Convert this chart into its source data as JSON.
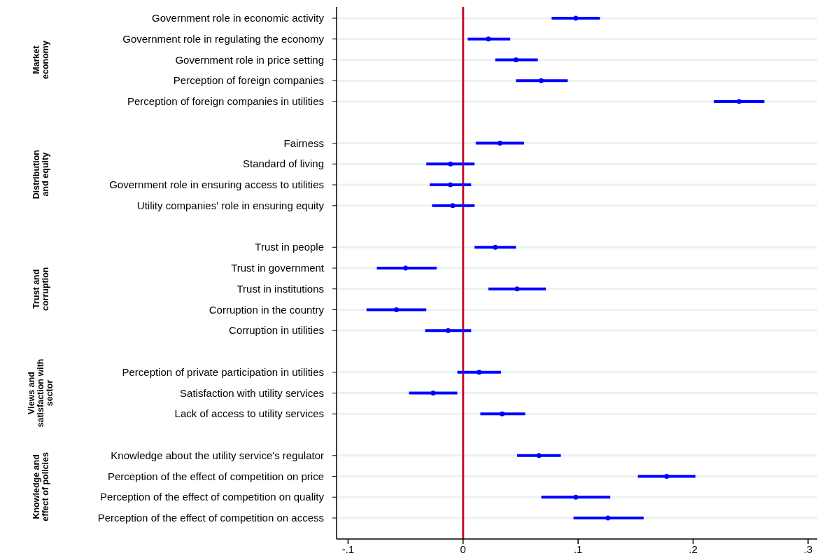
{
  "chart_data": {
    "type": "scatter",
    "orientation": "horizontal",
    "categories": [
      "Government role in economic activity",
      "Government role in regulating the economy",
      "Government role in price setting",
      "Perception of foreign companies",
      "Perception of foreign companies in utilities",
      null,
      "Fairness",
      "Standard of living",
      "Government role in ensuring access to utilities",
      "Utility companies' role in ensuring equity",
      null,
      "Trust in people",
      "Trust in government",
      "Trust in institutions",
      "Corruption in the country",
      "Corruption in utilities",
      null,
      "Perception of private participation in utilities",
      "Satisfaction with utility services",
      "Lack of access to utility services",
      null,
      "Knowledge about the utility service's regulator",
      "Perception of the effect of competition on price",
      "Perception of the effect of competition on quality",
      "Perception of the effect of competition on access"
    ],
    "series": [
      {
        "color": "#0000ff",
        "values": [
          0.098,
          0.022,
          0.046,
          0.068,
          0.24,
          null,
          0.032,
          -0.011,
          -0.011,
          -0.009,
          null,
          0.028,
          -0.05,
          0.047,
          -0.058,
          -0.013,
          null,
          0.014,
          -0.026,
          0.034,
          null,
          0.066,
          0.177,
          0.098,
          0.126
        ],
        "errors": [
          [
            0.077,
            0.119
          ],
          [
            0.004,
            0.041
          ],
          [
            0.028,
            0.065
          ],
          [
            0.046,
            0.091
          ],
          [
            0.218,
            0.262
          ],
          null,
          [
            0.011,
            0.053
          ],
          [
            -0.032,
            0.01
          ],
          [
            -0.029,
            0.007
          ],
          [
            -0.027,
            0.01
          ],
          null,
          [
            0.01,
            0.046
          ],
          [
            -0.075,
            -0.023
          ],
          [
            0.022,
            0.072
          ],
          [
            -0.084,
            -0.032
          ],
          [
            -0.033,
            0.007
          ],
          null,
          [
            -0.005,
            0.033
          ],
          [
            -0.047,
            -0.005
          ],
          [
            0.015,
            0.054
          ],
          null,
          [
            0.047,
            0.085
          ],
          [
            0.152,
            0.202
          ],
          [
            0.068,
            0.128
          ],
          [
            0.096,
            0.157
          ]
        ]
      }
    ],
    "xlim": [
      -0.11,
      0.308
    ],
    "xticks": [
      {
        "value": -0.1,
        "label": "-.1"
      },
      0,
      {
        "value": 0.1,
        "label": ".1"
      },
      {
        "value": 0.2,
        "label": ".2"
      },
      {
        "value": 0.3,
        "label": ".3"
      }
    ],
    "ref_lines": [
      {
        "axis": "x",
        "value": 0,
        "label": null,
        "color": "#c8102e"
      }
    ],
    "annotations": [
      "Market\neconomy",
      "Distribution\nand equity",
      "Trust and\ncorruption",
      "Views and\nsatisfaction with\nsector",
      "Knowledge and\neffect of policies"
    ],
    "grid": "y",
    "marker": "circle"
  }
}
